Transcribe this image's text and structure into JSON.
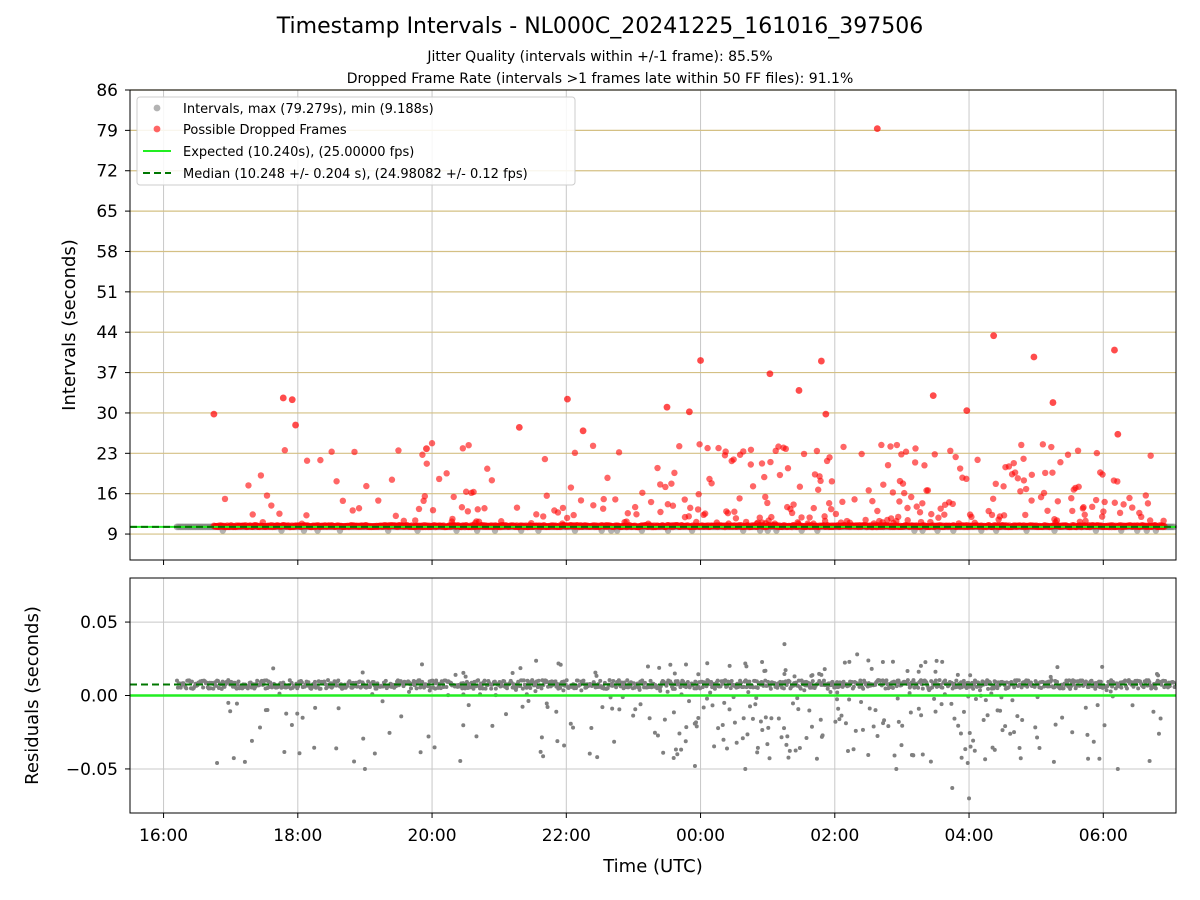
{
  "figure": {
    "title": "Timestamp Intervals - NL000C_20241225_161016_397506",
    "subtitle_jitter": "Jitter Quality (intervals within +/-1 frame): 85.5%",
    "subtitle_dropped": "Dropped Frame Rate (intervals >1 frames late within 50 FF files): 91.1%"
  },
  "colors": {
    "intervals": "#808080",
    "dropped": "#ff0000",
    "expected": "#22ee22",
    "median": "#007700",
    "hgrid_top": "#d4c084",
    "grid": "#c8c8c8"
  },
  "chart_data": [
    {
      "type": "scatter",
      "panel": "intervals",
      "xlabel": "",
      "ylabel": "Intervals (seconds)",
      "x_ticks": [
        "16:00",
        "18:00",
        "20:00",
        "22:00",
        "00:00",
        "02:00",
        "04:00",
        "06:00"
      ],
      "y_ticks": [
        9,
        16,
        23,
        30,
        37,
        44,
        51,
        58,
        65,
        72,
        79,
        86
      ],
      "xlim": [
        "2024-12-25T15:30",
        "2024-12-26T07:05"
      ],
      "ylim": [
        4.5,
        86
      ],
      "grid": "both",
      "legend_position": "top-left",
      "legend": [
        "Intervals, max (79.279s), min (9.188s)",
        "Possible Dropped Frames",
        "Expected (10.240s), (25.00000 fps)",
        "Median (10.248 +/- 0.204 s), (24.98082 +/- 0.12 fps)"
      ],
      "series": [
        {
          "name": "Possible Dropped Frames",
          "points": [
            [
              "2024-12-25T16:45",
              29.8
            ],
            [
              "2024-12-25T17:47",
              32.6
            ],
            [
              "2024-12-25T17:55",
              32.3
            ],
            [
              "2024-12-25T17:58",
              27.9
            ],
            [
              "2024-12-25T19:55",
              23.8
            ],
            [
              "2024-12-25T21:18",
              27.5
            ],
            [
              "2024-12-25T22:01",
              32.4
            ],
            [
              "2024-12-25T22:15",
              26.9
            ],
            [
              "2024-12-25T23:30",
              31.0
            ],
            [
              "2024-12-25T23:50",
              30.2
            ],
            [
              "2024-12-26T00:00",
              39.1
            ],
            [
              "2024-12-26T01:02",
              36.8
            ],
            [
              "2024-12-26T01:28",
              33.9
            ],
            [
              "2024-12-26T01:48",
              39.0
            ],
            [
              "2024-12-26T01:52",
              29.8
            ],
            [
              "2024-12-26T02:38",
              79.3
            ],
            [
              "2024-12-26T03:28",
              33.0
            ],
            [
              "2024-12-26T03:58",
              30.4
            ],
            [
              "2024-12-26T04:22",
              43.4
            ],
            [
              "2024-12-26T04:58",
              39.7
            ],
            [
              "2024-12-26T05:15",
              31.8
            ],
            [
              "2024-12-26T06:10",
              40.9
            ],
            [
              "2024-12-26T06:13",
              26.3
            ]
          ]
        }
      ]
    },
    {
      "type": "scatter",
      "panel": "residuals",
      "xlabel": "Time (UTC)",
      "ylabel": "Residuals (seconds)",
      "x_ticks": [
        "16:00",
        "18:00",
        "20:00",
        "22:00",
        "00:00",
        "02:00",
        "04:00",
        "06:00"
      ],
      "y_ticks": [
        "−0.05",
        "0.00",
        "0.05"
      ],
      "ylim": [
        -0.08,
        0.08
      ],
      "grid": "both",
      "series": [
        {
          "name": "",
          "points": [
            [
              "2024-12-26T01:15",
              0.035
            ],
            [
              "2024-12-26T02:20",
              0.028
            ],
            [
              "2024-12-26T03:45",
              -0.063
            ],
            [
              "2024-12-26T04:00",
              -0.07
            ],
            [
              "2024-12-26T06:13",
              -0.05
            ],
            [
              "2024-12-25T19:00",
              -0.05
            ],
            [
              "2024-12-25T23:55",
              -0.048
            ],
            [
              "2024-12-26T00:40",
              -0.05
            ],
            [
              "2024-12-26T02:55",
              -0.05
            ]
          ]
        }
      ]
    }
  ]
}
